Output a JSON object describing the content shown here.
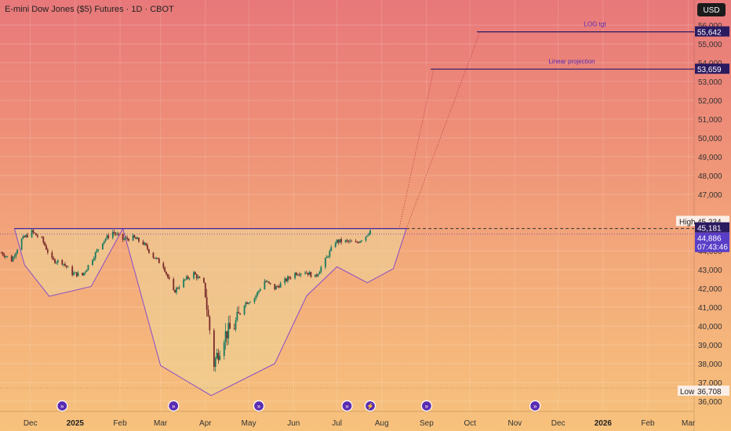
{
  "header": {
    "title": "E-mini Dow Jones ($5) Futures · 1D · CBOT",
    "currency_button": "USD"
  },
  "chart_data": {
    "type": "line",
    "title": "E-mini Dow Jones ($5) Futures · 1D · CBOT",
    "y_ticks": [
      "36,000",
      "37,000",
      "38,000",
      "39,000",
      "40,000",
      "41,000",
      "42,000",
      "43,000",
      "44,000",
      "47,000",
      "48,000",
      "49,000",
      "50,000",
      "51,000",
      "52,000",
      "53,000",
      "54,000",
      "55,000",
      "56,000"
    ],
    "y_tick_values": [
      36000,
      37000,
      38000,
      39000,
      40000,
      41000,
      42000,
      43000,
      44000,
      47000,
      48000,
      49000,
      50000,
      51000,
      52000,
      53000,
      54000,
      55000,
      56000
    ],
    "ylim": [
      35500,
      56500
    ],
    "x_ticks": [
      {
        "label": "Dec",
        "date": "2024-12-01",
        "bold": false
      },
      {
        "label": "2025",
        "date": "2025-01-01",
        "bold": true
      },
      {
        "label": "Feb",
        "date": "2025-02-01",
        "bold": false
      },
      {
        "label": "Mar",
        "date": "2025-03-01",
        "bold": false
      },
      {
        "label": "Apr",
        "date": "2025-04-01",
        "bold": false
      },
      {
        "label": "May",
        "date": "2025-05-01",
        "bold": false
      },
      {
        "label": "Jun",
        "date": "2025-06-01",
        "bold": false
      },
      {
        "label": "Jul",
        "date": "2025-07-01",
        "bold": false
      },
      {
        "label": "Aug",
        "date": "2025-08-01",
        "bold": false
      },
      {
        "label": "Sep",
        "date": "2025-09-01",
        "bold": false
      },
      {
        "label": "Oct",
        "date": "2025-10-01",
        "bold": false
      },
      {
        "label": "Nov",
        "date": "2025-11-01",
        "bold": false
      },
      {
        "label": "Dec",
        "date": "2025-12-01",
        "bold": false
      },
      {
        "label": "2026",
        "date": "2026-01-01",
        "bold": true
      },
      {
        "label": "Feb",
        "date": "2026-02-01",
        "bold": false
      },
      {
        "label": "Mar",
        "date": "2026-03-01",
        "bold": false
      }
    ],
    "x_range": [
      "2024-11-10",
      "2026-03-05"
    ],
    "price_path": [
      [
        "2024-11-11",
        43900
      ],
      [
        "2024-11-18",
        43500
      ],
      [
        "2024-11-25",
        44600
      ],
      [
        "2024-12-02",
        45000
      ],
      [
        "2024-12-09",
        44600
      ],
      [
        "2024-12-16",
        43500
      ],
      [
        "2024-12-23",
        43400
      ],
      [
        "2024-12-30",
        42800
      ],
      [
        "2025-01-06",
        42700
      ],
      [
        "2025-01-13",
        43600
      ],
      [
        "2025-01-20",
        44500
      ],
      [
        "2025-01-27",
        45000
      ],
      [
        "2025-02-03",
        44600
      ],
      [
        "2025-02-10",
        44700
      ],
      [
        "2025-02-17",
        44400
      ],
      [
        "2025-02-24",
        43700
      ],
      [
        "2025-03-03",
        43200
      ],
      [
        "2025-03-10",
        41800
      ],
      [
        "2025-03-17",
        42400
      ],
      [
        "2025-03-24",
        42800
      ],
      [
        "2025-03-31",
        42200
      ],
      [
        "2025-04-07",
        38000
      ],
      [
        "2025-04-14",
        39500
      ],
      [
        "2025-04-21",
        40000
      ],
      [
        "2025-04-28",
        41200
      ],
      [
        "2025-05-05",
        41500
      ],
      [
        "2025-05-12",
        42400
      ],
      [
        "2025-05-19",
        42000
      ],
      [
        "2025-05-26",
        42400
      ],
      [
        "2025-06-02",
        42800
      ],
      [
        "2025-06-09",
        42900
      ],
      [
        "2025-06-16",
        42600
      ],
      [
        "2025-06-23",
        43500
      ],
      [
        "2025-06-30",
        44500
      ],
      [
        "2025-07-07",
        44500
      ],
      [
        "2025-07-14",
        44400
      ],
      [
        "2025-07-21",
        44800
      ],
      [
        "2025-07-24",
        45100
      ]
    ],
    "pattern_polygon": [
      [
        "2024-11-20",
        45181
      ],
      [
        "2025-08-18",
        45181
      ],
      [
        "2025-08-09",
        43050
      ],
      [
        "2025-07-22",
        42300
      ],
      [
        "2025-07-01",
        43150
      ],
      [
        "2025-06-10",
        41600
      ],
      [
        "2025-05-19",
        38000
      ],
      [
        "2025-04-05",
        36300
      ],
      [
        "2025-03-01",
        37900
      ],
      [
        "2025-02-03",
        45181
      ],
      [
        "2025-01-12",
        42100
      ],
      [
        "2024-12-14",
        41580
      ],
      [
        "2024-11-27",
        43250
      ]
    ],
    "neckline": 45181,
    "projections": [
      {
        "label": "LOG tgt",
        "value": 55642,
        "from": [
          "2025-08-18",
          45181
        ],
        "to": [
          "2025-10-08",
          55642
        ]
      },
      {
        "label": "Linear projection",
        "value": 53659,
        "from": [
          "2025-08-13",
          45181
        ],
        "to": [
          "2025-09-06",
          53659
        ]
      }
    ],
    "price_labels": {
      "high": {
        "label": "High",
        "value": 45234,
        "text": "45,234"
      },
      "neck": {
        "value": 45181,
        "text": "45,181"
      },
      "last": {
        "value": 44886,
        "text": "44,886"
      },
      "countdown": "07:43:46",
      "low": {
        "label": "Low",
        "value": 36708,
        "text": "36,708"
      },
      "log_tgt": {
        "text": "55,642"
      },
      "linear": {
        "text": "53,659"
      }
    },
    "event_markers": [
      "2024-12-23",
      "2025-03-10",
      "2025-05-08",
      "2025-07-08",
      "2025-07-24",
      "2025-09-01",
      "2025-11-15"
    ],
    "colors": {
      "accent": "#5a2bb0",
      "pattern_fill": "#ecd79a",
      "candle_up": "#1a7a5e",
      "candle_down": "#7a2a2a",
      "bar": "#2a1a60"
    }
  }
}
